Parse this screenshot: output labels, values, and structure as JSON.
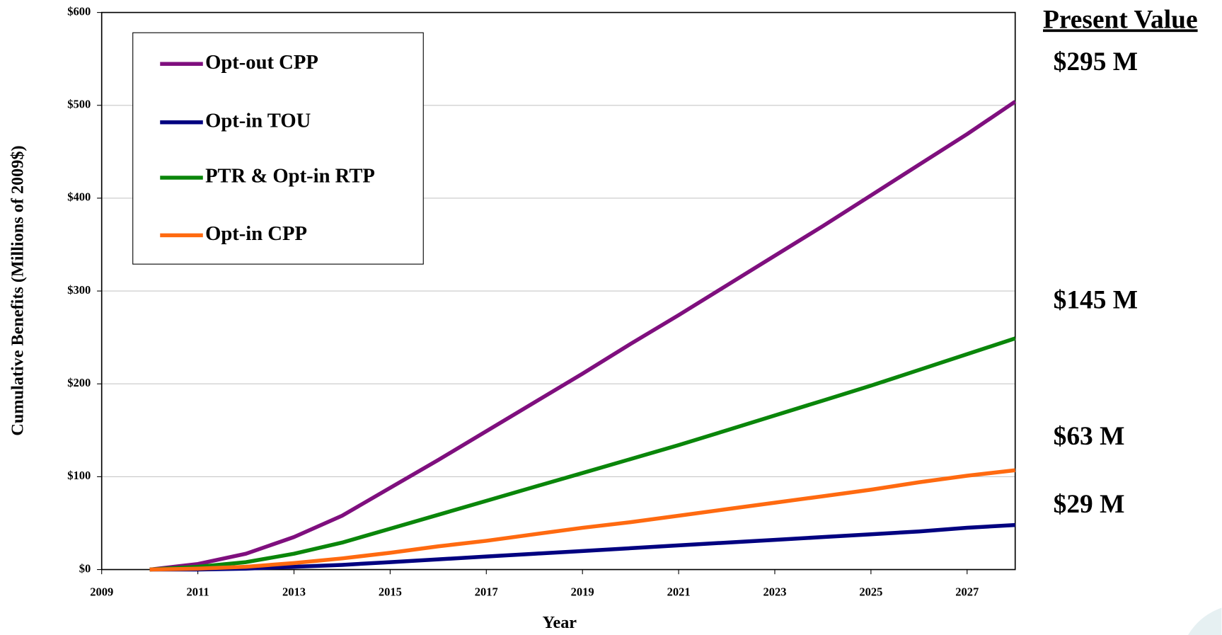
{
  "chart_data": {
    "type": "line",
    "x_label": "Year",
    "y_label": "Cumulative Benefits (Millions of 2009$)",
    "x": [
      2010,
      2011,
      2012,
      2013,
      2014,
      2015,
      2016,
      2017,
      2018,
      2019,
      2020,
      2021,
      2022,
      2023,
      2024,
      2025,
      2026,
      2027,
      2028
    ],
    "series": [
      {
        "name": "Opt-out CPP",
        "color": "#7f0f7e",
        "values": [
          0,
          6,
          17,
          35,
          58,
          88,
          118,
          149,
          180,
          211,
          243,
          274,
          306,
          338,
          370,
          403,
          436,
          469,
          504
        ]
      },
      {
        "name": "Opt-in TOU",
        "color": "#000080",
        "values": [
          0,
          0,
          1,
          3,
          5,
          8,
          11,
          14,
          17,
          20,
          23,
          26,
          29,
          32,
          35,
          38,
          41,
          45,
          48
        ]
      },
      {
        "name": "PTR & Opt-in RTP",
        "color": "#0a860a",
        "values": [
          0,
          3,
          8,
          17,
          29,
          44,
          59,
          74,
          89,
          104,
          119,
          134,
          150,
          166,
          182,
          198,
          215,
          232,
          249
        ]
      },
      {
        "name": "Opt-in CPP",
        "color": "#ff6a10",
        "values": [
          0,
          1,
          3,
          7,
          12,
          18,
          25,
          31,
          38,
          45,
          51,
          58,
          65,
          72,
          79,
          86,
          94,
          101,
          107
        ]
      }
    ],
    "xlim": [
      2009,
      2028
    ],
    "xticks": [
      2009,
      2011,
      2013,
      2015,
      2017,
      2019,
      2021,
      2023,
      2025,
      2027
    ],
    "ylim": [
      0,
      600
    ],
    "yticks": [
      {
        "value": 0,
        "label": "$0"
      },
      {
        "value": 100,
        "label": "$100"
      },
      {
        "value": 200,
        "label": "$200"
      },
      {
        "value": 300,
        "label": "$300"
      },
      {
        "value": 400,
        "label": "$400"
      },
      {
        "value": 500,
        "label": "$500"
      },
      {
        "value": 600,
        "label": "$600"
      }
    ],
    "grid": true,
    "legend": "upper left",
    "annotation_title": "Present Value",
    "annotations": [
      "$295 M",
      "$145 M",
      "$63 M",
      "$29 M"
    ]
  }
}
